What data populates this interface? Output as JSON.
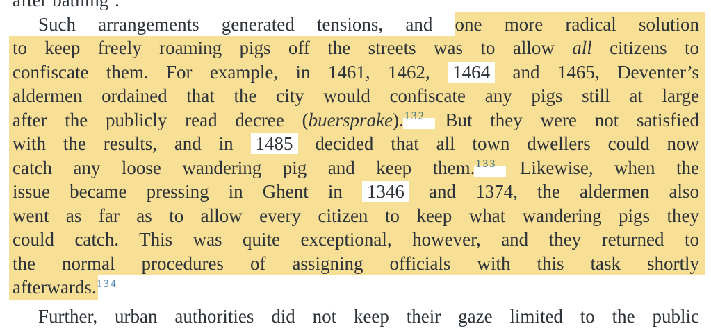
{
  "colors": {
    "page_bg": "#ffffff",
    "text": "#2d3338",
    "highlight": "#f8df96",
    "gap_box": "#ffffff",
    "fn_on_highlight": "#3e7079",
    "fn_link": "#4d82ad"
  },
  "lines": [
    {
      "text": "after bathing’."
    },
    {
      "pre": "Such arrangements generated tensions, and ",
      "hl": "one more radical solution"
    },
    {
      "a": "to keep freely roaming pigs off the streets was to allow ",
      "it": "all",
      "b": " citizens to"
    },
    {
      "a": "confiscate them. For example, in 1461, 1462, ",
      "box": "1464",
      "b": " and 1465, Deventer’s"
    },
    {
      "a": "aldermen ordained that the city would confiscate any pigs still at large"
    },
    {
      "a": "after the publicly read decree (",
      "it": "buersprake",
      "b": ").",
      "fn": "132",
      "c": " But they were not satisfied"
    },
    {
      "a": "with the results, and in ",
      "box": "1485",
      "b": " decided that all town dwellers could now"
    },
    {
      "a": "catch any loose wandering pig and keep them.",
      "fn": "133",
      "b": " Likewise, when the"
    },
    {
      "a": "issue became pressing in Ghent in ",
      "box": "1346",
      "b": " and 1374, the aldermen also"
    },
    {
      "a": "went as far as to allow every citizen to keep what wandering pigs they"
    },
    {
      "a": "could catch. This was quite exceptional, however, and they returned to"
    },
    {
      "a": "the normal procedures of assigning officials with this task shortly"
    },
    {
      "hl": "afterwards.",
      "fn": "134"
    },
    {
      "text": "Further, urban authorities did not keep their gaze limited to the public"
    }
  ]
}
